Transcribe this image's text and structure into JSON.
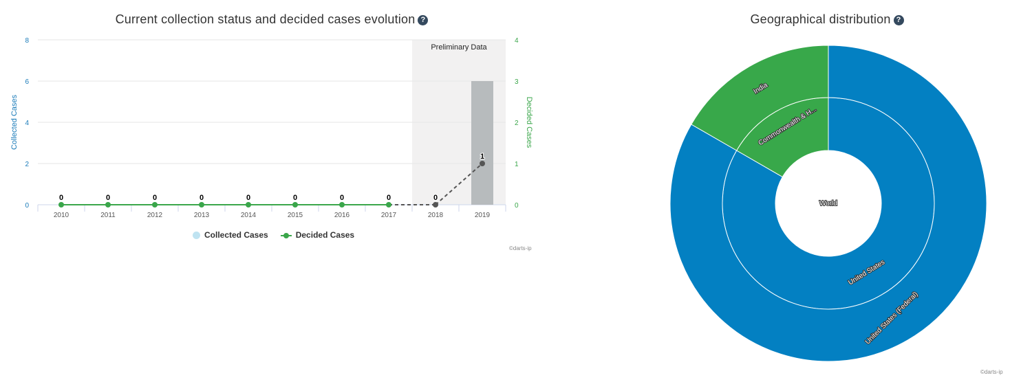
{
  "left": {
    "title": "Current collection status and decided cases evolution",
    "help_icon": "?",
    "credit": "©darts-ip",
    "legend": [
      {
        "label": "Collected Cases",
        "color": "#bfe3f1"
      },
      {
        "label": "Decided Cases",
        "color": "#3aa64a"
      }
    ]
  },
  "right": {
    "title": "Geographical distribution",
    "help_icon": "?",
    "credit": "©darts-ip"
  },
  "chart_data": [
    {
      "type": "bar",
      "title": "Current collection status and decided cases evolution",
      "categories": [
        "2010",
        "2011",
        "2012",
        "2013",
        "2014",
        "2015",
        "2016",
        "2017",
        "2018",
        "2019"
      ],
      "series": [
        {
          "name": "Collected Cases",
          "type": "bar",
          "axis": "left",
          "values": [
            0,
            0,
            0,
            0,
            0,
            0,
            0,
            0,
            0,
            6
          ],
          "color": "#b7bbbd"
        },
        {
          "name": "Decided Cases",
          "type": "line",
          "axis": "right",
          "values": [
            0,
            0,
            0,
            0,
            0,
            0,
            0,
            0,
            0,
            1
          ],
          "color": "#3aa64a",
          "data_labels": [
            "0",
            "0",
            "0",
            "0",
            "0",
            "0",
            "0",
            "0",
            "0",
            "1"
          ]
        }
      ],
      "ylabel_left": "Collected Cases",
      "ylabel_right": "Decided Cases",
      "ylim_left": [
        0,
        8
      ],
      "yticks_left": [
        "0",
        "2",
        "4",
        "6",
        "8"
      ],
      "ylim_right": [
        0,
        4
      ],
      "yticks_right": [
        "0",
        "1",
        "2",
        "3",
        "4"
      ],
      "preliminary": {
        "label": "Preliminary Data",
        "from": "2018",
        "to": "2019"
      },
      "colors": {
        "left_axis": "#1a7bb9",
        "right_axis": "#3aa64a",
        "grid": "#e6e6e6",
        "preliminary_band": "#f2f1f1",
        "preliminary_line": "#555555"
      }
    },
    {
      "type": "pie",
      "title": "Geographical distribution",
      "center_label": "World",
      "rings": [
        {
          "name": "inner",
          "slices": [
            {
              "label": "United States",
              "value": 5,
              "color": "#0380c2"
            },
            {
              "label": "Commonwealth & H...",
              "value": 1,
              "color": "#38a84a"
            }
          ]
        },
        {
          "name": "outer",
          "slices": [
            {
              "label": "United States (Federal)",
              "value": 5,
              "color": "#0380c2"
            },
            {
              "label": "India",
              "value": 1,
              "color": "#38a84a"
            }
          ]
        }
      ]
    }
  ]
}
